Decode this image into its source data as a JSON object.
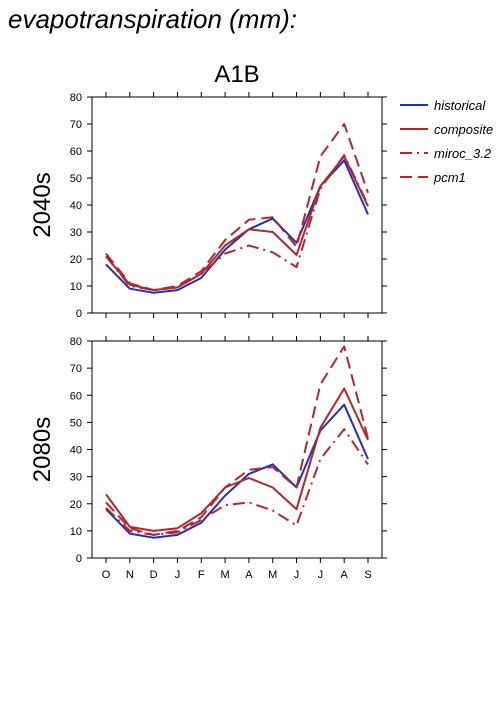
{
  "page_title": "evapotranspiration (mm):",
  "chart_data": {
    "type": "line",
    "title": "A1B",
    "categories": [
      "O",
      "N",
      "D",
      "J",
      "F",
      "M",
      "A",
      "M",
      "J",
      "J",
      "A",
      "S"
    ],
    "ylim": [
      0,
      80
    ],
    "yticks": [
      0,
      10,
      20,
      30,
      40,
      50,
      60,
      70,
      80
    ],
    "grid": false,
    "legend_position": "top-right",
    "colors": {
      "historical": "#1f2fbf",
      "composite": "#b5262a",
      "miroc_3.2": "#b5262a",
      "pcm1": "#b5262a"
    },
    "legend": [
      {
        "name": "historical",
        "color": "#1f2fbf",
        "dash": "solid"
      },
      {
        "name": "composite",
        "color": "#b5262a",
        "dash": "solid"
      },
      {
        "name": "miroc_3.2",
        "color": "#b5262a",
        "dash": "dashdot"
      },
      {
        "name": "pcm1",
        "color": "#b5262a",
        "dash": "dashed"
      }
    ],
    "panels": [
      {
        "label": "2040s",
        "series": [
          {
            "name": "historical",
            "values": [
              18,
              9,
              7.5,
              8.5,
              13,
              23.5,
              31,
              35,
              26,
              47,
              56.5,
              36.5
            ]
          },
          {
            "name": "composite",
            "values": [
              21,
              10.5,
              8.5,
              9.5,
              14.5,
              25,
              31,
              30,
              21.5,
              47,
              58,
              39.5
            ]
          },
          {
            "name": "miroc_3.2",
            "values": [
              21,
              10,
              8.5,
              9.5,
              14.5,
              22,
              25,
              22.5,
              17,
              46,
              58.5,
              40
            ]
          },
          {
            "name": "pcm1",
            "values": [
              22,
              11,
              8.5,
              10,
              15.5,
              27,
              34.5,
              35.5,
              24.5,
              58,
              70,
              44.5
            ]
          }
        ]
      },
      {
        "label": "2080s",
        "series": [
          {
            "name": "historical",
            "values": [
              18,
              9,
              7.5,
              8.5,
              13,
              23,
              31,
              34.5,
              26,
              47,
              56.5,
              36.5
            ]
          },
          {
            "name": "composite",
            "values": [
              23.5,
              11.5,
              10,
              11,
              16.5,
              26,
              29.5,
              26,
              18,
              48,
              62.5,
              43.5
            ]
          },
          {
            "name": "miroc_3.2",
            "values": [
              18.5,
              10,
              8.5,
              9.5,
              14,
              19.5,
              20.5,
              17.5,
              12,
              36.5,
              47.5,
              34.5
            ]
          },
          {
            "name": "pcm1",
            "values": [
              20.5,
              11,
              8.5,
              10,
              15,
              26,
              32.5,
              33.5,
              26,
              64,
              78,
              44
            ]
          }
        ]
      }
    ]
  }
}
